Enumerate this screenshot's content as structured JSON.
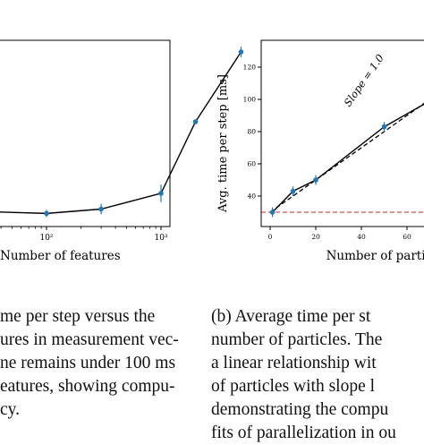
{
  "chart_data": [
    {
      "type": "line",
      "panel": "a",
      "xlabel": "Number of features",
      "ylabel": "",
      "xscale": "log",
      "tick_labels_x": [
        "10²",
        "10³"
      ],
      "series": [
        {
          "x": [
            30,
            100,
            300,
            1000,
            2000,
            5000
          ],
          "y": [
            30.5,
            29.5,
            32,
            41,
            82,
            122
          ],
          "err": [
            2,
            2,
            3,
            5,
            1,
            3
          ],
          "color": "#1f77b4"
        }
      ],
      "grid": false
    },
    {
      "type": "line",
      "panel": "b",
      "xlabel": "Number of particle",
      "ylabel": "Avg. time per step [ms]",
      "xlim": [
        -3,
        71
      ],
      "ylim": [
        25,
        135
      ],
      "xticks": [
        0,
        20,
        40,
        60
      ],
      "yticks": [
        40,
        60,
        80,
        100,
        120
      ],
      "annotation": "Slope = 1.0",
      "reference_line": {
        "y": 30,
        "color": "#d62728",
        "style": "dashed"
      },
      "slope_line": {
        "slope": 1.0,
        "intercept": 30,
        "style": "dashed",
        "color": "#000000"
      },
      "series": [
        {
          "x": [
            1,
            10,
            20,
            50,
            75
          ],
          "y": [
            30,
            43,
            50,
            83,
            103
          ],
          "err": [
            3,
            3,
            3,
            3,
            3
          ],
          "color": "#1f77b4"
        }
      ],
      "grid": false
    }
  ],
  "caption_left": [
    "me per step versus the",
    "ures in measurement vec-",
    "ne remains under 100 ms",
    "eatures, showing compu-",
    "cy."
  ],
  "caption_right": [
    "(b)  Average  time  per  st",
    "number  of  particles.  The",
    "a  linear  relationship  wit",
    "of  particles  with  slope  l",
    "demonstrating  the  compu",
    "fits  of  parallelization  in  ou"
  ]
}
